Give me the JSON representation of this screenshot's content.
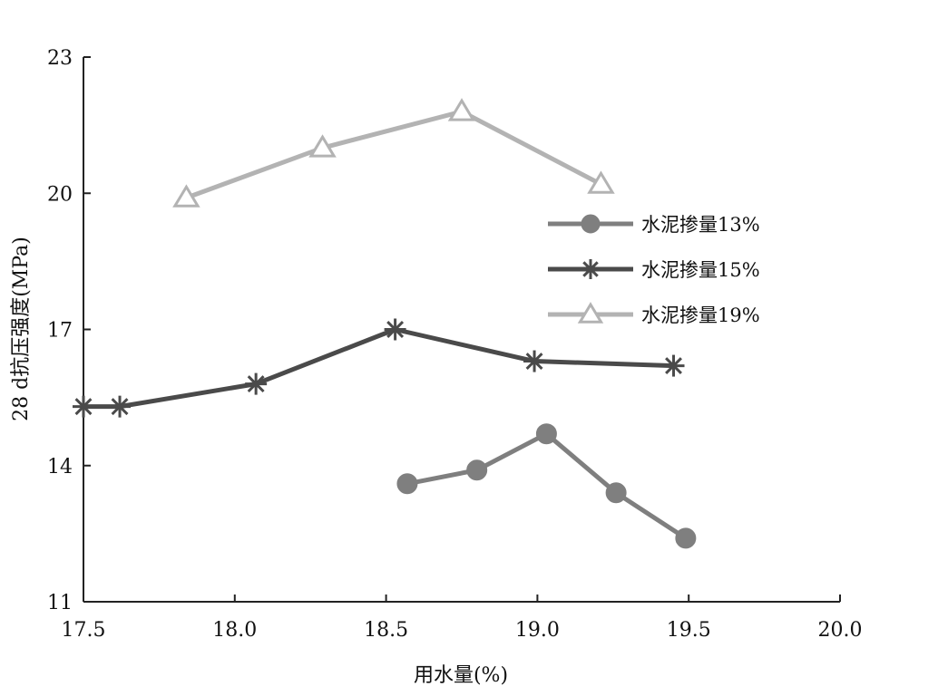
{
  "chart_data": {
    "type": "line",
    "title": "",
    "xlabel": "用水量(%)",
    "ylabel": "28 d抗压强度(MPa)",
    "xlim": [
      17.5,
      20.0
    ],
    "ylim": [
      11,
      23
    ],
    "x_ticks": [
      "17.5",
      "18.0",
      "18.5",
      "19.0",
      "19.5",
      "20.0"
    ],
    "y_ticks": [
      "11",
      "14",
      "17",
      "20",
      "23"
    ],
    "grid": false,
    "legend_position": "right-middle",
    "series": [
      {
        "name": "水泥掺量13%",
        "color": "#7f7f7f",
        "marker": "circle",
        "points": [
          [
            18.57,
            13.6
          ],
          [
            18.8,
            13.9
          ],
          [
            19.03,
            14.7
          ],
          [
            19.26,
            13.4
          ],
          [
            19.49,
            12.4
          ]
        ]
      },
      {
        "name": "水泥掺量15%",
        "color": "#4a4a4a",
        "marker": "star",
        "points": [
          [
            17.5,
            15.3
          ],
          [
            17.62,
            15.3
          ],
          [
            18.07,
            15.8
          ],
          [
            18.53,
            17.0
          ],
          [
            18.99,
            16.3
          ],
          [
            19.45,
            16.2
          ]
        ]
      },
      {
        "name": "水泥掺量19%",
        "color": "#b3b3b3",
        "marker": "triangle",
        "points": [
          [
            17.84,
            19.9
          ],
          [
            18.29,
            21.0
          ],
          [
            18.75,
            21.8
          ],
          [
            19.21,
            20.2
          ]
        ]
      }
    ]
  }
}
